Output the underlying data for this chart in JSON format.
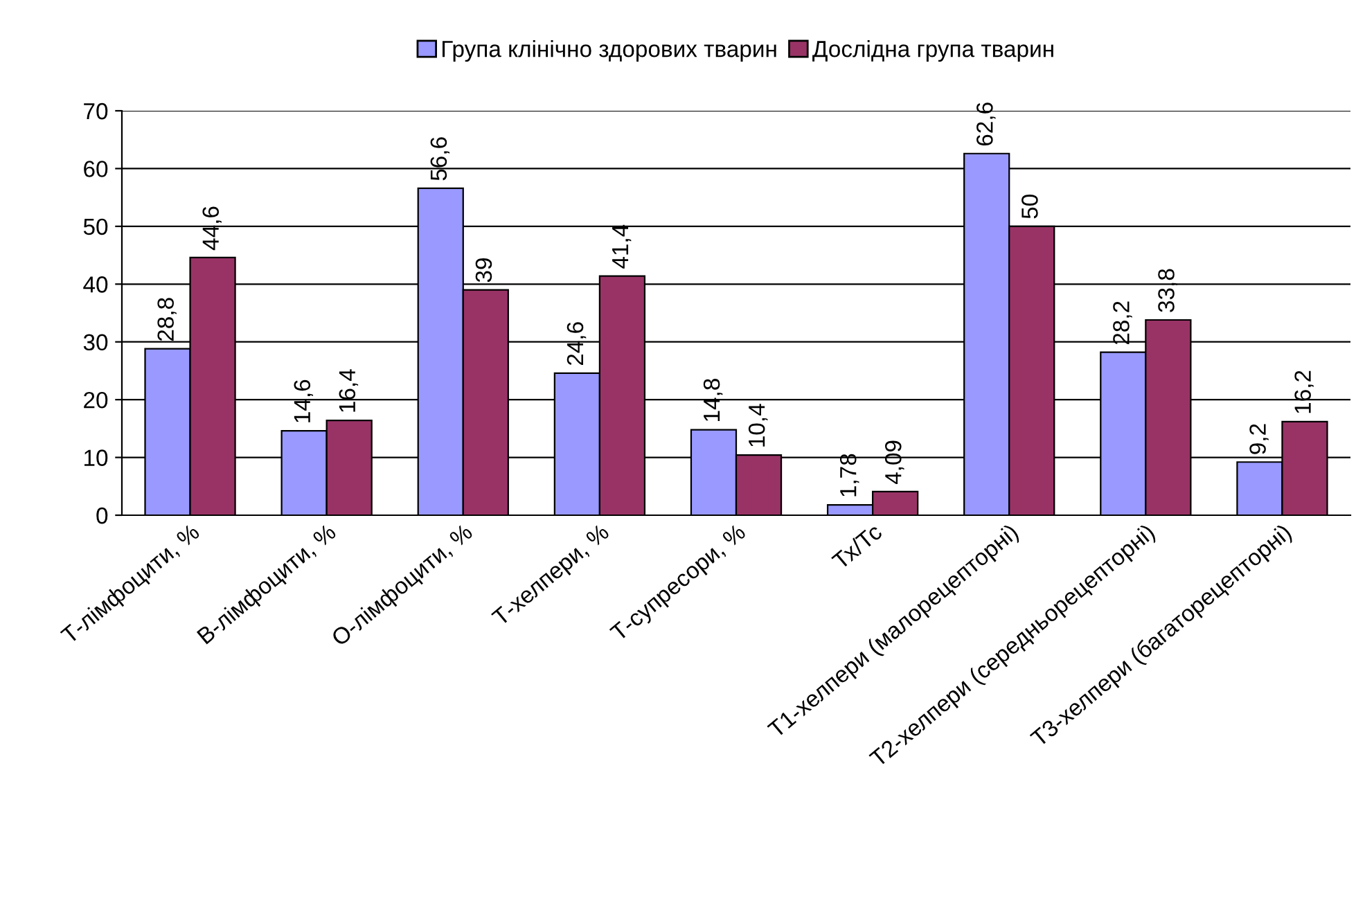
{
  "chart_data": {
    "type": "bar",
    "categories": [
      "Т-лімфоцити, %",
      "В-лімфоцити, %",
      "О-лімфоцити, %",
      "Т-хелпери, %",
      "Т-супресори, %",
      "Тх/Тс",
      "Т1-хелпери (малорецепторні)",
      "Т2-хелпери (середньорецепторні)",
      "Т3-хелпери (багаторецепторні)"
    ],
    "series": [
      {
        "name": "Група клінічно здорових тварин",
        "color": "#9999ff",
        "values": [
          28.8,
          14.6,
          56.6,
          24.6,
          14.8,
          1.78,
          62.6,
          28.2,
          9.2
        ],
        "value_labels": [
          "28,8",
          "14,6",
          "56,6",
          "24,6",
          "14,8",
          "1,78",
          "62,6",
          "28,2",
          "9,2"
        ]
      },
      {
        "name": "Дослідна група тварин",
        "color": "#993366",
        "values": [
          44.6,
          16.4,
          39,
          41.4,
          10.4,
          4.09,
          50,
          33.8,
          16.2
        ],
        "value_labels": [
          "44,6",
          "16,4",
          "39",
          "41,4",
          "10,4",
          "4,09",
          "50",
          "33,8",
          "16,2"
        ]
      }
    ],
    "ylim": [
      0,
      70
    ],
    "yticks": [
      0,
      10,
      20,
      30,
      40,
      50,
      60,
      70
    ],
    "grid": "y",
    "legend": "top"
  }
}
